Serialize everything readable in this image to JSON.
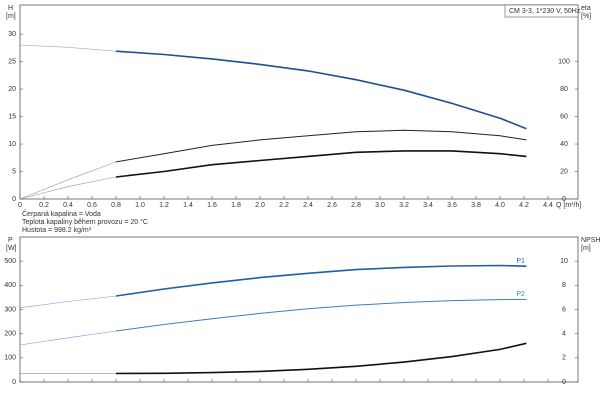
{
  "chart_data": [
    {
      "type": "line",
      "title": "CM 3-3, 1*230 V, 50Hz",
      "y_label": "H",
      "y_unit": "[m]",
      "y2_label": "eta",
      "y2_unit": "[%]",
      "x_label": "Q [m³/h]",
      "annotations": [
        "Čerpaná kapalina = Voda",
        "Teplota kapaliny během provozu = 20 °C",
        "Hustota = 998.2 kg/m³"
      ],
      "xlim": [
        0,
        4.65
      ],
      "ylim": [
        0,
        35.3
      ],
      "y2lim": [
        0,
        141.2
      ],
      "xticks": [
        0,
        0.2,
        0.4,
        0.6,
        0.8,
        {
          "value": 1,
          "label": "1.0"
        },
        1.2,
        1.4,
        1.6,
        1.8,
        {
          "value": 2,
          "label": "2.0"
        },
        2.2,
        2.4,
        2.6,
        2.8,
        {
          "value": 3,
          "label": "3.0"
        },
        3.2,
        3.4,
        3.6,
        3.8,
        {
          "value": 4,
          "label": "4.0"
        },
        4.2,
        4.4
      ],
      "xtick_labels": true,
      "yticks": [
        0,
        5,
        10,
        15,
        20,
        25,
        30
      ],
      "y2ticks": [
        0,
        20,
        40,
        60,
        80,
        100
      ],
      "series": [
        {
          "color": "#9aa9d6",
          "style": "extrapolated",
          "x": [
            0,
            0.4,
            0.8
          ],
          "values": [
            28,
            27.6,
            26.9
          ]
        },
        {
          "color": "#1d4f91",
          "style": "operating",
          "x": [
            0.8,
            1.2,
            1.6,
            2.0,
            2.4,
            2.8,
            3.2,
            3.6,
            4.0,
            4.22
          ],
          "values": [
            26.9,
            26.3,
            25.5,
            24.5,
            23.3,
            21.7,
            19.8,
            17.4,
            14.7,
            12.8
          ]
        },
        {
          "color": "#999999",
          "style": "extrapolated",
          "axis": "y2",
          "x": [
            0,
            0.4,
            0.8
          ],
          "values": [
            0,
            14,
            27
          ]
        },
        {
          "color": "#222222",
          "style": "operating-thin",
          "axis": "y2",
          "x": [
            0.8,
            1.2,
            1.6,
            2.0,
            2.4,
            2.8,
            3.2,
            3.6,
            4.0,
            4.22
          ],
          "values": [
            27,
            33,
            39,
            43,
            46,
            49,
            50,
            49,
            46,
            43
          ]
        },
        {
          "color": "#999999",
          "style": "extrapolated",
          "axis": "y2",
          "x": [
            0,
            0.4,
            0.8
          ],
          "values": [
            0,
            9,
            16
          ]
        },
        {
          "color": "#111111",
          "style": "operating",
          "axis": "y2",
          "x": [
            0.8,
            1.2,
            1.6,
            2.0,
            2.4,
            2.8,
            3.2,
            3.6,
            4.0,
            4.22
          ],
          "values": [
            16,
            20,
            25,
            28,
            31,
            34,
            35,
            35,
            33,
            31
          ]
        }
      ]
    },
    {
      "type": "line",
      "y_label": "P",
      "y_unit": "[W]",
      "y2_label": "NPSH",
      "y2_unit": "[m]",
      "xlim": [
        0,
        4.65
      ],
      "ylim": [
        0,
        600
      ],
      "y2lim": [
        0,
        12
      ],
      "xticks": [
        0,
        0.2,
        0.4,
        0.6,
        0.8,
        1,
        1.2,
        1.4,
        1.6,
        1.8,
        2,
        2.2,
        2.4,
        2.6,
        2.8,
        3,
        3.2,
        3.4,
        3.6,
        3.8,
        4,
        4.2,
        4.4
      ],
      "xtick_labels": false,
      "yticks": [
        0,
        100,
        200,
        300,
        400,
        500
      ],
      "y2ticks": [
        0,
        2,
        4,
        6,
        8,
        10
      ],
      "series": [
        {
          "color": "#8c8fd9",
          "style": "extrapolated",
          "x": [
            0,
            0.4,
            0.8
          ],
          "values": [
            307,
            333,
            356
          ]
        },
        {
          "name": "P1",
          "color": "#1f5fa8",
          "style": "operating",
          "x": [
            0.8,
            1.2,
            1.6,
            2.0,
            2.4,
            2.8,
            3.2,
            3.6,
            4.0,
            4.22
          ],
          "values": [
            356,
            385,
            410,
            432,
            450,
            465,
            474,
            480,
            482,
            479
          ]
        },
        {
          "color": "#8c8fd9",
          "style": "extrapolated",
          "x": [
            0,
            0.4,
            0.8
          ],
          "values": [
            153,
            183,
            211
          ]
        },
        {
          "name": "P2",
          "color": "#3a7fc1",
          "style": "operating-thin",
          "x": [
            0.8,
            1.2,
            1.6,
            2.0,
            2.4,
            2.8,
            3.2,
            3.6,
            4.0,
            4.22
          ],
          "values": [
            211,
            238,
            262,
            284,
            303,
            318,
            329,
            337,
            341,
            342
          ]
        },
        {
          "color": "#777777",
          "style": "extrapolated",
          "axis": "y2",
          "x": [
            0,
            0.4,
            0.8
          ],
          "values": [
            0.7,
            0.7,
            0.7
          ]
        },
        {
          "color": "#111111",
          "style": "operating",
          "axis": "y2",
          "x": [
            0.8,
            1.2,
            1.6,
            2.0,
            2.4,
            2.8,
            3.2,
            3.6,
            4.0,
            4.22
          ],
          "values": [
            0.7,
            0.72,
            0.78,
            0.88,
            1.05,
            1.3,
            1.65,
            2.1,
            2.7,
            3.2
          ]
        }
      ]
    }
  ]
}
